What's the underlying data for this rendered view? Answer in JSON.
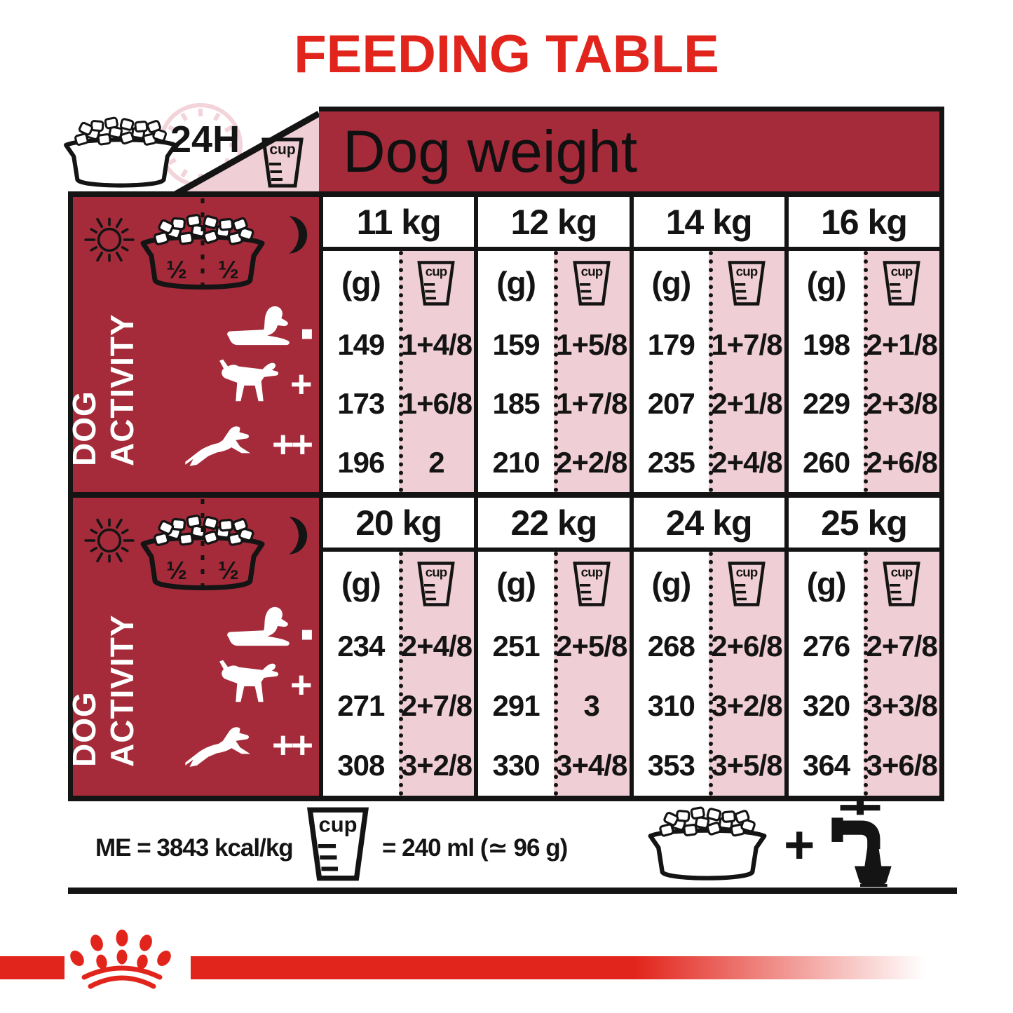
{
  "title": "FEEDING TABLE",
  "header": {
    "hours_badge": "24H",
    "cup_label": "cup",
    "dog_weight": "Dog weight"
  },
  "sidebar": {
    "label": "DOG ACTIVITY",
    "half_left": "½",
    "half_right": "½",
    "activity_markers": [
      "▪",
      "+",
      "++"
    ]
  },
  "table": {
    "grams_header": "(g)",
    "sections": [
      {
        "columns": [
          {
            "weight": "11 kg",
            "values": [
              {
                "g": "149",
                "cup": "1+4/8"
              },
              {
                "g": "173",
                "cup": "1+6/8"
              },
              {
                "g": "196",
                "cup": "2"
              }
            ]
          },
          {
            "weight": "12 kg",
            "values": [
              {
                "g": "159",
                "cup": "1+5/8"
              },
              {
                "g": "185",
                "cup": "1+7/8"
              },
              {
                "g": "210",
                "cup": "2+2/8"
              }
            ]
          },
          {
            "weight": "14 kg",
            "values": [
              {
                "g": "179",
                "cup": "1+7/8"
              },
              {
                "g": "207",
                "cup": "2+1/8"
              },
              {
                "g": "235",
                "cup": "2+4/8"
              }
            ]
          },
          {
            "weight": "16 kg",
            "values": [
              {
                "g": "198",
                "cup": "2+1/8"
              },
              {
                "g": "229",
                "cup": "2+3/8"
              },
              {
                "g": "260",
                "cup": "2+6/8"
              }
            ]
          }
        ]
      },
      {
        "columns": [
          {
            "weight": "20 kg",
            "values": [
              {
                "g": "234",
                "cup": "2+4/8"
              },
              {
                "g": "271",
                "cup": "2+7/8"
              },
              {
                "g": "308",
                "cup": "3+2/8"
              }
            ]
          },
          {
            "weight": "22 kg",
            "values": [
              {
                "g": "251",
                "cup": "2+5/8"
              },
              {
                "g": "291",
                "cup": "3"
              },
              {
                "g": "330",
                "cup": "3+4/8"
              }
            ]
          },
          {
            "weight": "24 kg",
            "values": [
              {
                "g": "268",
                "cup": "2+6/8"
              },
              {
                "g": "310",
                "cup": "3+2/8"
              },
              {
                "g": "353",
                "cup": "3+5/8"
              }
            ]
          },
          {
            "weight": "25 kg",
            "values": [
              {
                "g": "276",
                "cup": "2+7/8"
              },
              {
                "g": "320",
                "cup": "3+3/8"
              },
              {
                "g": "364",
                "cup": "3+6/8"
              }
            ]
          }
        ]
      }
    ]
  },
  "footer": {
    "me": "ME = 3843 kcal/kg",
    "cup_equiv": "= 240 ml (≃ 96 g)",
    "plus": "+"
  },
  "colors": {
    "brand_red": "#E2251C",
    "dark_red": "#A52B3A",
    "pink": "#EFCFD5",
    "black": "#141414"
  }
}
